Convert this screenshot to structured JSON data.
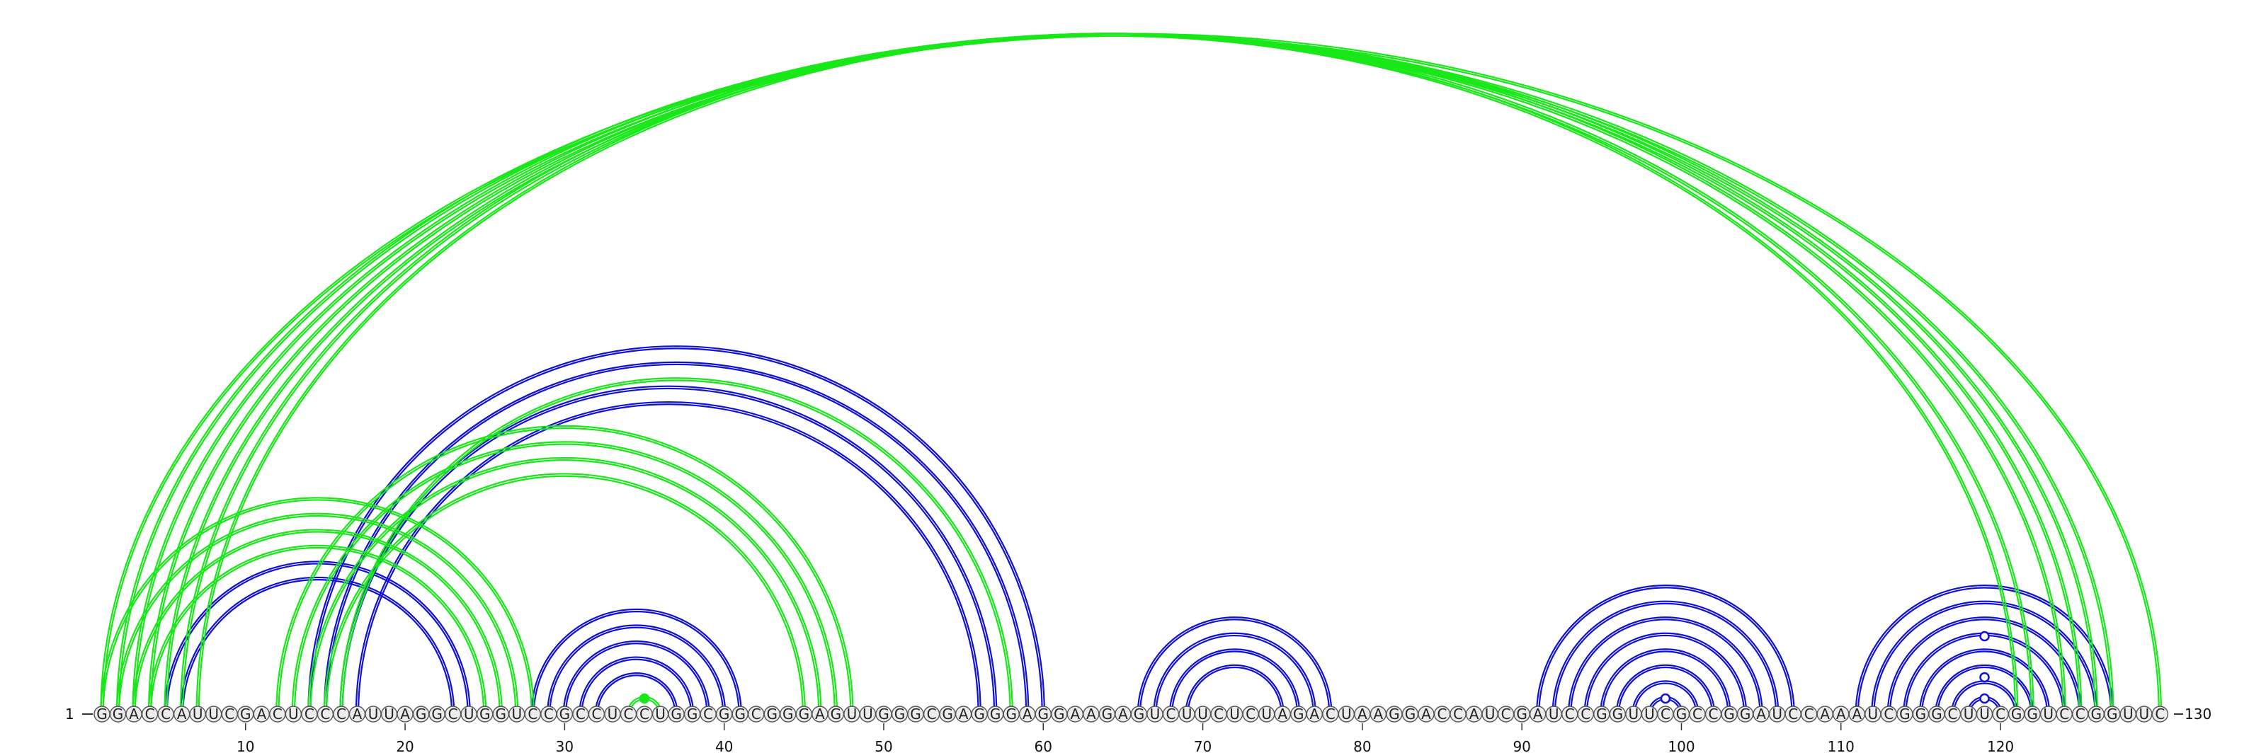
{
  "sequence": "GGACCAUUCGACUCCCAUUAGGCUGGUCCGCCUCCUGGCGGCGGGAGUUGGGCGAGGGAGGAAGAGUCUUCUCUAGACUAAGGACCAUCGAUCCGGUUCGCCGGAUCCAAAUCGGGCUUCGGUCCGGUUC",
  "start_label": "1",
  "end_label": "130",
  "ticks": [
    10,
    20,
    30,
    40,
    50,
    60,
    70,
    80,
    90,
    100,
    110,
    120
  ],
  "colors": {
    "blue": "#1010d8",
    "green": "#18e818",
    "nuc_fill": "#ececec",
    "nuc_stroke": "#555555"
  },
  "arcs": {
    "green": [
      [
        1,
        130
      ],
      [
        2,
        127
      ],
      [
        3,
        126
      ],
      [
        4,
        125
      ],
      [
        5,
        124
      ],
      [
        6,
        122
      ],
      [
        7,
        121
      ],
      [
        1,
        28
      ],
      [
        2,
        27
      ],
      [
        3,
        26
      ],
      [
        4,
        25
      ],
      [
        12,
        48
      ],
      [
        13,
        47
      ],
      [
        14,
        46
      ],
      [
        15,
        45
      ],
      [
        16,
        58
      ],
      [
        34,
        36
      ]
    ],
    "blue": [
      [
        5,
        24
      ],
      [
        6,
        23
      ],
      [
        14,
        60
      ],
      [
        15,
        59
      ],
      [
        16,
        57
      ],
      [
        17,
        56
      ],
      [
        28,
        41
      ],
      [
        29,
        40
      ],
      [
        30,
        39
      ],
      [
        31,
        38
      ],
      [
        32,
        37
      ],
      [
        66,
        78
      ],
      [
        67,
        77
      ],
      [
        68,
        76
      ],
      [
        69,
        75
      ],
      [
        91,
        107
      ],
      [
        92,
        106
      ],
      [
        93,
        105
      ],
      [
        94,
        104
      ],
      [
        95,
        103
      ],
      [
        96,
        102
      ],
      [
        97,
        101
      ],
      [
        98,
        100
      ],
      [
        111,
        127
      ],
      [
        112,
        126
      ],
      [
        113,
        125
      ],
      [
        114,
        124
      ],
      [
        115,
        123
      ],
      [
        116,
        122
      ],
      [
        117,
        121
      ],
      [
        118,
        120
      ]
    ]
  },
  "markers": [
    {
      "pos": 35,
      "offset": 22,
      "color": "#18e818",
      "filled": true
    },
    {
      "pos": 99,
      "offset": 22,
      "color": "#1010d8",
      "filled": false
    },
    {
      "pos": 119,
      "offset": 22,
      "color": "#1010d8",
      "filled": false
    },
    {
      "pos": 119,
      "offset": 52,
      "color": "#1010d8",
      "filled": false
    },
    {
      "pos": 119,
      "offset": 110,
      "color": "#1010d8",
      "filled": false
    }
  ]
}
